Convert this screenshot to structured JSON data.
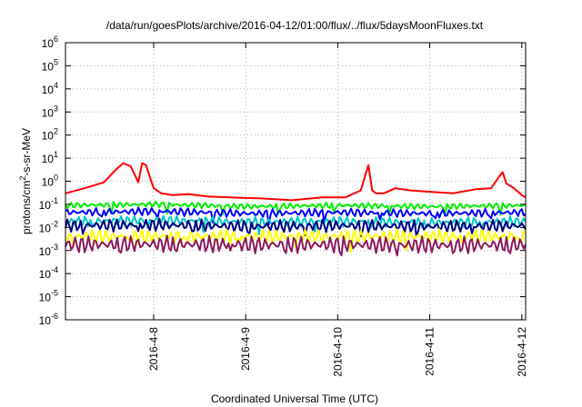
{
  "chart_data": {
    "type": "line",
    "title": "/data/run/goesPlots/archive/2016-04-12/01:00/flux/../flux/5daysMoonFluxes.txt",
    "xlabel": "Coordinated Universal Time (UTC)",
    "ylabel": "protons/cm²-s-sr-MeV",
    "yscale": "log",
    "ylim": [
      1e-06,
      1000000.0
    ],
    "yticks": [
      {
        "value": 1e-06,
        "base": "10",
        "exp": "-6"
      },
      {
        "value": 1e-05,
        "base": "10",
        "exp": "-5"
      },
      {
        "value": 0.0001,
        "base": "10",
        "exp": "-4"
      },
      {
        "value": 0.001,
        "base": "10",
        "exp": "-3"
      },
      {
        "value": 0.01,
        "base": "10",
        "exp": "-2"
      },
      {
        "value": 0.1,
        "base": "10",
        "exp": "-1"
      },
      {
        "value": 1.0,
        "base": "10",
        "exp": "0"
      },
      {
        "value": 10.0,
        "base": "10",
        "exp": "1"
      },
      {
        "value": 100.0,
        "base": "10",
        "exp": "2"
      },
      {
        "value": 1000.0,
        "base": "10",
        "exp": "3"
      },
      {
        "value": 10000.0,
        "base": "10",
        "exp": "4"
      },
      {
        "value": 100000.0,
        "base": "10",
        "exp": "5"
      },
      {
        "value": 1000000.0,
        "base": "10",
        "exp": "6"
      }
    ],
    "xlim": [
      "2016-04-07 01:00",
      "2016-04-12 01:00"
    ],
    "xticks": [
      {
        "label": "2016-4-8",
        "value": "2016-04-08 00:00"
      },
      {
        "label": "2016-4-9",
        "value": "2016-04-09 00:00"
      },
      {
        "label": "2016-4-10",
        "value": "2016-04-10 00:00"
      },
      {
        "label": "2016-4-11",
        "value": "2016-04-11 00:00"
      },
      {
        "label": "2016-4-12",
        "value": "2016-04-12 00:00"
      }
    ],
    "grid": true,
    "series": [
      {
        "color": "#ff0000",
        "x": [
          "2016-04-07 01:00",
          "2016-04-07 06:00",
          "2016-04-07 11:00",
          "2016-04-07 14:00",
          "2016-04-07 16:00",
          "2016-04-07 18:00",
          "2016-04-07 20:00",
          "2016-04-07 21:00",
          "2016-04-07 22:00",
          "2016-04-07 23:00",
          "2016-04-08 00:00",
          "2016-04-08 02:00",
          "2016-04-08 05:00",
          "2016-04-08 09:00",
          "2016-04-08 14:00",
          "2016-04-08 20:00",
          "2016-04-09 04:00",
          "2016-04-09 12:00",
          "2016-04-09 20:00",
          "2016-04-10 02:00",
          "2016-04-10 06:00",
          "2016-04-10 08:00",
          "2016-04-10 09:00",
          "2016-04-10 10:00",
          "2016-04-10 12:00",
          "2016-04-10 15:00",
          "2016-04-10 19:00",
          "2016-04-11 00:00",
          "2016-04-11 06:00",
          "2016-04-11 12:00",
          "2016-04-11 16:00",
          "2016-04-11 18:00",
          "2016-04-11 19:00",
          "2016-04-11 20:00",
          "2016-04-11 22:00",
          "2016-04-12 00:00",
          "2016-04-12 01:00"
        ],
        "values": [
          0.3,
          0.5,
          0.9,
          3,
          6,
          4.5,
          0.9,
          6,
          5,
          1.5,
          0.5,
          0.3,
          0.25,
          0.28,
          0.22,
          0.2,
          0.18,
          0.15,
          0.2,
          0.2,
          0.4,
          5,
          0.4,
          0.3,
          0.3,
          0.5,
          0.4,
          0.35,
          0.3,
          0.45,
          0.5,
          1.5,
          2.5,
          0.8,
          0.5,
          0.25,
          0.2
        ]
      },
      {
        "color": "#00ee00",
        "x": [
          "2016-04-07 01:00",
          "2016-04-08 01:00",
          "2016-04-09 01:00",
          "2016-04-10 01:00",
          "2016-04-11 01:00",
          "2016-04-12 01:00"
        ],
        "values": [
          0.09,
          0.1,
          0.08,
          0.09,
          0.08,
          0.09
        ]
      },
      {
        "color": "#0000ff",
        "x": [
          "2016-04-07 01:00",
          "2016-04-08 01:00",
          "2016-04-09 01:00",
          "2016-04-10 01:00",
          "2016-04-11 01:00",
          "2016-04-12 01:00"
        ],
        "values": [
          0.045,
          0.05,
          0.04,
          0.045,
          0.04,
          0.045
        ]
      },
      {
        "color": "#00c8c8",
        "x": [
          "2016-04-07 01:00",
          "2016-04-08 01:00",
          "2016-04-09 01:00",
          "2016-04-10 01:00",
          "2016-04-11 01:00",
          "2016-04-12 01:00"
        ],
        "values": [
          0.018,
          0.02,
          0.017,
          0.018,
          0.016,
          0.018
        ]
      },
      {
        "color": "#000080",
        "x": [
          "2016-04-07 01:00",
          "2016-04-08 01:00",
          "2016-04-09 01:00",
          "2016-04-10 01:00",
          "2016-04-11 01:00",
          "2016-04-12 01:00"
        ],
        "values": [
          0.012,
          0.013,
          0.011,
          0.012,
          0.011,
          0.012
        ]
      },
      {
        "color": "#ffff00",
        "x": [
          "2016-04-07 01:00",
          "2016-04-08 01:00",
          "2016-04-09 01:00",
          "2016-04-10 01:00",
          "2016-04-11 01:00",
          "2016-04-12 01:00"
        ],
        "values": [
          0.004,
          0.004,
          0.004,
          0.004,
          0.004,
          0.004
        ]
      },
      {
        "color": "#8b1a5e",
        "x": [
          "2016-04-07 01:00",
          "2016-04-08 01:00",
          "2016-04-09 01:00",
          "2016-04-10 01:00",
          "2016-04-11 01:00",
          "2016-04-12 01:00"
        ],
        "values": [
          0.0018,
          0.0019,
          0.0018,
          0.0018,
          0.0017,
          0.0018
        ]
      }
    ]
  }
}
